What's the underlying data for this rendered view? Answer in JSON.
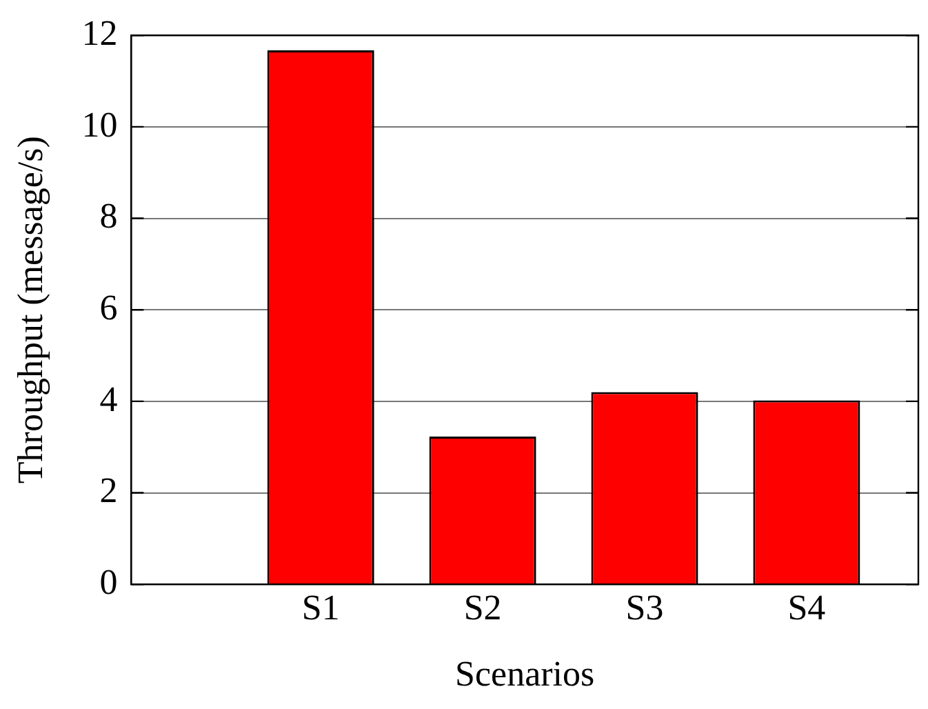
{
  "chart_data": {
    "type": "bar",
    "xlabel": "Scenarios",
    "ylabel": "Throughput (message/s)",
    "categories": [
      "S1",
      "S2",
      "S3",
      "S4"
    ],
    "values": [
      11.67,
      3.23,
      4.2,
      4.02
    ],
    "color": "#ff0000",
    "ylim": [
      0,
      12
    ],
    "yticks": [
      0,
      2,
      4,
      6,
      8,
      10,
      12
    ],
    "grid": "y",
    "legend": false
  }
}
